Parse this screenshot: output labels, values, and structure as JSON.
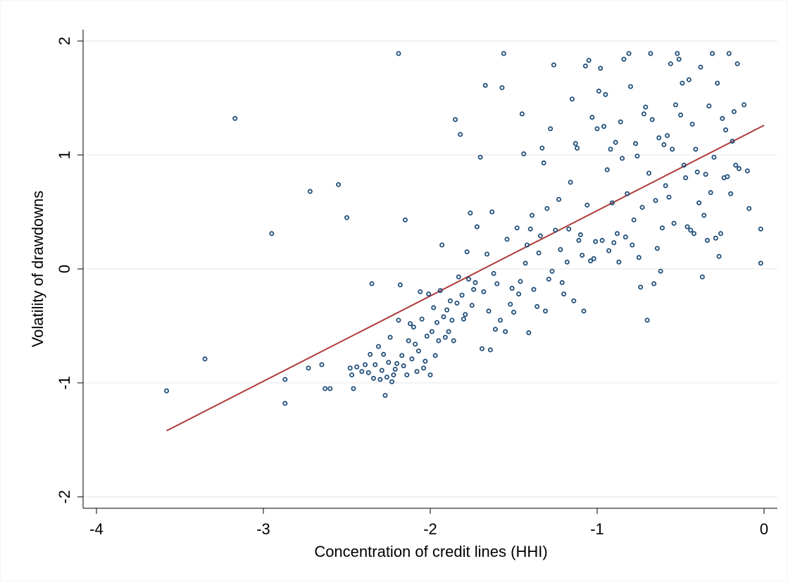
{
  "chart_data": {
    "type": "scatter",
    "title": "",
    "xlabel": "Concentration of credit lines (HHI)",
    "ylabel": "Volatility of drawdowns",
    "xlim": [
      -4.08,
      0.08
    ],
    "ylim": [
      -2.1,
      2.1
    ],
    "xticks": [
      -4,
      -3,
      -2,
      -1,
      0
    ],
    "xtick_labels": [
      "-4",
      "-3",
      "-2",
      "-1",
      "0"
    ],
    "yticks": [
      -2,
      -1,
      0,
      1,
      2
    ],
    "ytick_labels": [
      "-2",
      "-1",
      "0",
      "1",
      "2"
    ],
    "grid": "horizontal",
    "legend": "none",
    "colors": {
      "points": "#1f4e79",
      "fit_line": "#b03a3a",
      "grid": "#e6e6e6",
      "axes": "#000000"
    },
    "series": [
      {
        "type": "scatter",
        "points": [
          [
            -3.58,
            -1.07
          ],
          [
            -3.35,
            -0.79
          ],
          [
            -3.17,
            1.32
          ],
          [
            -2.95,
            0.31
          ],
          [
            -2.87,
            -0.97
          ],
          [
            -2.87,
            -1.18
          ],
          [
            -2.72,
            0.68
          ],
          [
            -2.73,
            -0.87
          ],
          [
            -2.65,
            -0.84
          ],
          [
            -2.63,
            -1.05
          ],
          [
            -2.6,
            -1.05
          ],
          [
            -2.55,
            0.74
          ],
          [
            -2.5,
            0.45
          ],
          [
            -2.48,
            -0.87
          ],
          [
            -2.47,
            -0.93
          ],
          [
            -2.46,
            -1.05
          ],
          [
            -2.44,
            -0.86
          ],
          [
            -2.41,
            -0.9
          ],
          [
            -2.39,
            -0.84
          ],
          [
            -2.37,
            -0.91
          ],
          [
            -2.36,
            -0.75
          ],
          [
            -2.35,
            -0.13
          ],
          [
            -2.34,
            -0.96
          ],
          [
            -2.33,
            -0.84
          ],
          [
            -2.31,
            -0.68
          ],
          [
            -2.3,
            -0.97
          ],
          [
            -2.29,
            -0.89
          ],
          [
            -2.28,
            -0.75
          ],
          [
            -2.27,
            -1.11
          ],
          [
            -2.26,
            -0.95
          ],
          [
            -2.25,
            -0.82
          ],
          [
            -2.24,
            -0.6
          ],
          [
            -2.23,
            -0.99
          ],
          [
            -2.22,
            -0.93
          ],
          [
            -2.21,
            -0.88
          ],
          [
            -2.2,
            -0.83
          ],
          [
            -2.19,
            -0.45
          ],
          [
            -2.19,
            1.89
          ],
          [
            -2.18,
            -0.14
          ],
          [
            -2.17,
            -0.76
          ],
          [
            -2.16,
            -0.85
          ],
          [
            -2.15,
            0.43
          ],
          [
            -2.14,
            -0.93
          ],
          [
            -2.13,
            -0.63
          ],
          [
            -2.12,
            -0.48
          ],
          [
            -2.11,
            -0.79
          ],
          [
            -2.1,
            -0.51
          ],
          [
            -2.09,
            -0.66
          ],
          [
            -2.08,
            -0.9
          ],
          [
            -2.07,
            -0.72
          ],
          [
            -2.06,
            -0.2
          ],
          [
            -2.05,
            -0.44
          ],
          [
            -2.04,
            -0.87
          ],
          [
            -2.03,
            -0.81
          ],
          [
            -2.02,
            -0.59
          ],
          [
            -2.01,
            -0.22
          ],
          [
            -2.0,
            -0.93
          ],
          [
            -1.99,
            -0.55
          ],
          [
            -1.98,
            -0.34
          ],
          [
            -1.97,
            -0.76
          ],
          [
            -1.96,
            -0.47
          ],
          [
            -1.95,
            -0.63
          ],
          [
            -1.94,
            -0.19
          ],
          [
            -1.93,
            0.21
          ],
          [
            -1.92,
            -0.42
          ],
          [
            -1.91,
            -0.6
          ],
          [
            -1.9,
            -0.36
          ],
          [
            -1.89,
            -0.55
          ],
          [
            -1.88,
            -0.28
          ],
          [
            -1.87,
            -0.45
          ],
          [
            -1.86,
            -0.63
          ],
          [
            -1.85,
            1.31
          ],
          [
            -1.84,
            -0.3
          ],
          [
            -1.83,
            -0.07
          ],
          [
            -1.82,
            1.18
          ],
          [
            -1.81,
            -0.23
          ],
          [
            -1.8,
            -0.44
          ],
          [
            -1.79,
            -0.4
          ],
          [
            -1.78,
            0.15
          ],
          [
            -1.77,
            -0.09
          ],
          [
            -1.76,
            0.49
          ],
          [
            -1.75,
            -0.32
          ],
          [
            -1.74,
            -0.18
          ],
          [
            -1.73,
            -0.12
          ],
          [
            -1.72,
            0.37
          ],
          [
            -1.7,
            0.98
          ],
          [
            -1.69,
            -0.7
          ],
          [
            -1.68,
            -0.2
          ],
          [
            -1.67,
            1.61
          ],
          [
            -1.66,
            0.13
          ],
          [
            -1.65,
            -0.37
          ],
          [
            -1.64,
            -0.71
          ],
          [
            -1.63,
            0.5
          ],
          [
            -1.62,
            -0.04
          ],
          [
            -1.61,
            -0.53
          ],
          [
            -1.6,
            -0.13
          ],
          [
            -1.58,
            -0.45
          ],
          [
            -1.57,
            1.59
          ],
          [
            -1.56,
            1.89
          ],
          [
            -1.55,
            -0.55
          ],
          [
            -1.54,
            0.26
          ],
          [
            -1.52,
            -0.31
          ],
          [
            -1.51,
            -0.17
          ],
          [
            -1.5,
            -0.38
          ],
          [
            -1.48,
            0.36
          ],
          [
            -1.47,
            -0.22
          ],
          [
            -1.46,
            -0.11
          ],
          [
            -1.45,
            1.36
          ],
          [
            -1.44,
            1.01
          ],
          [
            -1.43,
            0.05
          ],
          [
            -1.42,
            0.21
          ],
          [
            -1.41,
            -0.56
          ],
          [
            -1.4,
            0.35
          ],
          [
            -1.39,
            0.47
          ],
          [
            -1.38,
            -0.18
          ],
          [
            -1.36,
            -0.33
          ],
          [
            -1.35,
            0.14
          ],
          [
            -1.34,
            0.29
          ],
          [
            -1.33,
            1.06
          ],
          [
            -1.32,
            0.93
          ],
          [
            -1.31,
            -0.37
          ],
          [
            -1.3,
            0.53
          ],
          [
            -1.29,
            -0.09
          ],
          [
            -1.28,
            1.23
          ],
          [
            -1.27,
            -0.02
          ],
          [
            -1.26,
            1.79
          ],
          [
            -1.25,
            0.34
          ],
          [
            -1.23,
            0.61
          ],
          [
            -1.22,
            0.17
          ],
          [
            -1.21,
            -0.12
          ],
          [
            -1.2,
            -0.22
          ],
          [
            -1.18,
            0.06
          ],
          [
            -1.17,
            0.35
          ],
          [
            -1.16,
            0.76
          ],
          [
            -1.15,
            1.49
          ],
          [
            -1.14,
            -0.28
          ],
          [
            -1.13,
            1.1
          ],
          [
            -1.12,
            1.06
          ],
          [
            -1.11,
            0.25
          ],
          [
            -1.1,
            0.3
          ],
          [
            -1.09,
            0.12
          ],
          [
            -1.08,
            -0.37
          ],
          [
            -1.07,
            1.78
          ],
          [
            -1.06,
            0.56
          ],
          [
            -1.05,
            1.83
          ],
          [
            -1.04,
            0.07
          ],
          [
            -1.03,
            1.33
          ],
          [
            -1.02,
            0.09
          ],
          [
            -1.01,
            0.24
          ],
          [
            -1.0,
            1.23
          ],
          [
            -0.99,
            1.56
          ],
          [
            -0.98,
            1.76
          ],
          [
            -0.97,
            0.25
          ],
          [
            -0.96,
            1.25
          ],
          [
            -0.95,
            1.53
          ],
          [
            -0.94,
            0.87
          ],
          [
            -0.93,
            0.16
          ],
          [
            -0.92,
            1.05
          ],
          [
            -0.91,
            0.58
          ],
          [
            -0.9,
            0.23
          ],
          [
            -0.89,
            1.11
          ],
          [
            -0.88,
            0.31
          ],
          [
            -0.87,
            0.06
          ],
          [
            -0.86,
            1.29
          ],
          [
            -0.85,
            0.97
          ],
          [
            -0.84,
            1.84
          ],
          [
            -0.83,
            0.28
          ],
          [
            -0.82,
            0.66
          ],
          [
            -0.81,
            1.89
          ],
          [
            -0.8,
            1.6
          ],
          [
            -0.79,
            0.21
          ],
          [
            -0.78,
            0.43
          ],
          [
            -0.77,
            1.1
          ],
          [
            -0.76,
            0.99
          ],
          [
            -0.75,
            0.1
          ],
          [
            -0.74,
            -0.16
          ],
          [
            -0.73,
            0.54
          ],
          [
            -0.72,
            1.36
          ],
          [
            -0.71,
            1.42
          ],
          [
            -0.7,
            -0.45
          ],
          [
            -0.69,
            0.84
          ],
          [
            -0.68,
            1.89
          ],
          [
            -0.67,
            1.31
          ],
          [
            -0.66,
            -0.13
          ],
          [
            -0.65,
            0.6
          ],
          [
            -0.64,
            0.18
          ],
          [
            -0.63,
            1.15
          ],
          [
            -0.62,
            -0.02
          ],
          [
            -0.61,
            0.36
          ],
          [
            -0.6,
            1.09
          ],
          [
            -0.59,
            0.73
          ],
          [
            -0.58,
            1.17
          ],
          [
            -0.57,
            0.63
          ],
          [
            -0.56,
            1.8
          ],
          [
            -0.55,
            1.05
          ],
          [
            -0.54,
            0.4
          ],
          [
            -0.53,
            1.44
          ],
          [
            -0.52,
            1.89
          ],
          [
            -0.51,
            1.84
          ],
          [
            -0.5,
            1.35
          ],
          [
            -0.49,
            1.63
          ],
          [
            -0.48,
            0.91
          ],
          [
            -0.47,
            0.8
          ],
          [
            -0.46,
            0.37
          ],
          [
            -0.45,
            1.66
          ],
          [
            -0.44,
            0.34
          ],
          [
            -0.43,
            1.27
          ],
          [
            -0.42,
            0.31
          ],
          [
            -0.41,
            1.05
          ],
          [
            -0.4,
            0.85
          ],
          [
            -0.39,
            0.58
          ],
          [
            -0.38,
            1.77
          ],
          [
            -0.37,
            -0.07
          ],
          [
            -0.36,
            0.47
          ],
          [
            -0.35,
            0.83
          ],
          [
            -0.34,
            0.25
          ],
          [
            -0.33,
            1.43
          ],
          [
            -0.32,
            0.67
          ],
          [
            -0.31,
            1.89
          ],
          [
            -0.3,
            0.98
          ],
          [
            -0.29,
            0.27
          ],
          [
            -0.28,
            1.63
          ],
          [
            -0.27,
            0.11
          ],
          [
            -0.26,
            0.31
          ],
          [
            -0.25,
            1.32
          ],
          [
            -0.24,
            0.8
          ],
          [
            -0.23,
            1.22
          ],
          [
            -0.22,
            0.81
          ],
          [
            -0.21,
            1.89
          ],
          [
            -0.2,
            0.66
          ],
          [
            -0.19,
            1.12
          ],
          [
            -0.18,
            1.38
          ],
          [
            -0.17,
            0.91
          ],
          [
            -0.16,
            1.8
          ],
          [
            -0.15,
            0.88
          ],
          [
            -0.12,
            1.44
          ],
          [
            -0.1,
            0.86
          ],
          [
            -0.09,
            0.53
          ],
          [
            -0.02,
            0.35
          ],
          [
            -0.02,
            0.05
          ]
        ]
      },
      {
        "type": "line",
        "points": [
          [
            -3.58,
            -1.42
          ],
          [
            0.0,
            1.26
          ]
        ]
      }
    ]
  }
}
